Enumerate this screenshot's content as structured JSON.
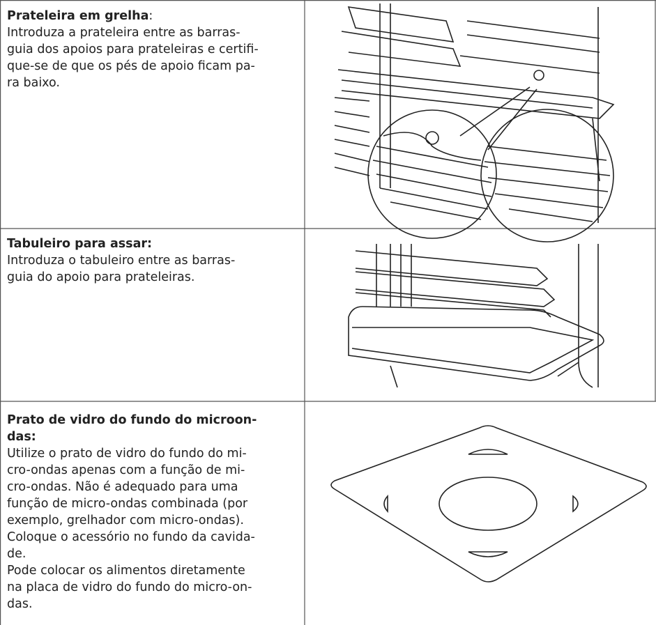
{
  "rows": [
    {
      "title": [
        "Prateleira em grelha"
      ],
      "title_suffix": ":",
      "lines": [
        "Introduza a prateleira entre as barras-",
        "guia dos apoios para prateleiras e certifi-",
        "que-se de que os pés de apoio ficam pa-",
        "ra baixo."
      ]
    },
    {
      "title": [
        "Tabuleiro para assar:"
      ],
      "lines": [
        "Introduza o tabuleiro entre as barras-",
        "guia do apoio para prateleiras."
      ]
    },
    {
      "title": [
        "Prato de vidro do fundo do microon-",
        "das:"
      ],
      "lines": [
        "Utilize o prato de vidro do fundo do mi-",
        "cro-ondas apenas com a função de mi-",
        "cro-ondas. Não é adequado para uma",
        "função de micro-ondas combinada (por",
        "exemplo, grelhador com micro-ondas).",
        "Coloque o acessório no fundo da cavida-",
        "de.",
        "Pode colocar os alimentos diretamente",
        "na placa de vidro do fundo do micro-on-",
        "das."
      ]
    }
  ]
}
